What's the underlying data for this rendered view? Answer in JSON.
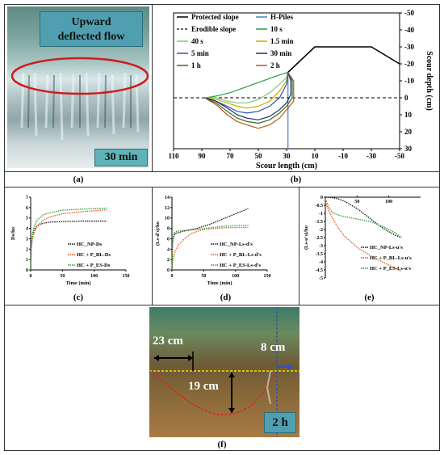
{
  "panels": {
    "a": {
      "caption": "(a)",
      "label": "Upward deflected flow",
      "label_line1": "Upward",
      "label_line2": "deflected flow",
      "time": "30 min"
    },
    "b": {
      "caption": "(b)"
    },
    "c": {
      "caption": "(c)"
    },
    "d": {
      "caption": "(d)"
    },
    "e": {
      "caption": "(e)"
    },
    "f": {
      "caption": "(f)",
      "dim1": "23 cm",
      "dim2": "19 cm",
      "dim3": "8 cm",
      "time": "2 h"
    }
  },
  "colors": {
    "protected": "#000000",
    "hpiles": "#4a7fc1",
    "s10s": "#2e9c3a",
    "s40s": "#7fc97f",
    "s1_5min": "#c8b400",
    "s5min": "#2c55a0",
    "s30min": "#1f2a70",
    "s1h": "#3a6b1e",
    "s2h": "#b2591e",
    "np": "#111111",
    "bl": "#e05a20",
    "es": "#2e9c3a"
  },
  "chart_data": [
    {
      "id": "b",
      "type": "line",
      "xlabel": "Scour length (cm)",
      "ylabel": "Scour depth (cm)",
      "xlim": [
        110,
        -50
      ],
      "ylim": [
        30,
        -50
      ],
      "xticks": [
        110,
        90,
        70,
        50,
        30,
        10,
        -10,
        -30,
        -50
      ],
      "yticks": [
        -50,
        -40,
        -30,
        -20,
        -10,
        0,
        10,
        20,
        30
      ],
      "legend": [
        "Protected slope",
        "H-Piles",
        "Erodible slope",
        "10 s",
        "40 s",
        "1.5 min",
        "5 min",
        "30 min",
        "1 h",
        "2 h"
      ],
      "series": [
        {
          "name": "Protected slope",
          "style": "solid",
          "x": [
            29,
            10,
            -30,
            -50
          ],
          "y": [
            -15,
            -30,
            -30,
            -20
          ]
        },
        {
          "name": "H-Piles",
          "style": "solid",
          "x": [
            29,
            29
          ],
          "y": [
            -15,
            30
          ]
        },
        {
          "name": "Erodible slope",
          "style": "dashed",
          "x": [
            110,
            -50
          ],
          "y": [
            0,
            0
          ]
        },
        {
          "name": "10 s",
          "x": [
            87,
            80,
            70,
            60,
            50,
            40,
            33,
            29
          ],
          "y": [
            0,
            -1,
            -3,
            -6,
            -9,
            -12,
            -14,
            -15
          ]
        },
        {
          "name": "40 s",
          "x": [
            87,
            80,
            72,
            65,
            58,
            50,
            42,
            35,
            30,
            29
          ],
          "y": [
            0,
            0,
            2,
            3,
            3,
            1,
            -3,
            -8,
            -12,
            -15
          ]
        },
        {
          "name": "1.5 min",
          "x": [
            87,
            80,
            72,
            65,
            58,
            50,
            42,
            35,
            30,
            29
          ],
          "y": [
            0,
            1,
            3,
            5,
            6,
            5,
            2,
            -4,
            -10,
            -15
          ]
        },
        {
          "name": "5 min",
          "x": [
            87,
            80,
            72,
            65,
            58,
            50,
            42,
            35,
            30,
            29
          ],
          "y": [
            0,
            2,
            5,
            8,
            9,
            8,
            5,
            0,
            -8,
            -15
          ]
        },
        {
          "name": "30 min",
          "x": [
            88,
            80,
            72,
            65,
            58,
            50,
            42,
            35,
            30,
            27,
            27,
            29
          ],
          "y": [
            0,
            2,
            6,
            10,
            12,
            13,
            11,
            7,
            3,
            -2,
            -10,
            -15
          ]
        },
        {
          "name": "1 h",
          "x": [
            88,
            80,
            72,
            65,
            58,
            50,
            42,
            35,
            30,
            26,
            26,
            29
          ],
          "y": [
            0,
            3,
            8,
            12,
            14,
            15,
            13,
            9,
            5,
            0,
            -10,
            -15
          ]
        },
        {
          "name": "2 h",
          "x": [
            88,
            80,
            72,
            65,
            58,
            50,
            42,
            35,
            30,
            25,
            25,
            29
          ],
          "y": [
            0,
            4,
            10,
            14,
            16,
            18,
            16,
            12,
            7,
            2,
            -10,
            -15
          ]
        }
      ]
    },
    {
      "id": "c",
      "type": "line",
      "xlabel": "Time (min)",
      "ylabel": "Ds/ho",
      "xlim": [
        0,
        150
      ],
      "ylim": [
        0,
        7
      ],
      "xticks": [
        0,
        50,
        100,
        150
      ],
      "yticks": [
        0,
        1,
        2,
        3,
        4,
        5,
        6,
        7
      ],
      "series": [
        {
          "name": "HC_NP-Ds",
          "x": [
            0,
            1,
            3,
            5,
            8,
            12,
            20,
            30,
            50,
            80,
            120
          ],
          "y": [
            0,
            2.5,
            3.4,
            3.8,
            4.1,
            4.3,
            4.5,
            4.6,
            4.65,
            4.7,
            4.7
          ]
        },
        {
          "name": "HC + P_BL-Ds",
          "x": [
            0,
            1,
            3,
            5,
            10,
            20,
            30,
            50,
            80,
            120
          ],
          "y": [
            0,
            2.0,
            3.0,
            3.5,
            4.2,
            4.8,
            5.1,
            5.4,
            5.6,
            5.8
          ]
        },
        {
          "name": "HC + P_ES-Ds",
          "x": [
            0,
            1,
            3,
            5,
            10,
            20,
            30,
            50,
            80,
            120
          ],
          "y": [
            0,
            2.5,
            3.5,
            4.1,
            4.8,
            5.3,
            5.5,
            5.75,
            5.85,
            5.95
          ]
        }
      ]
    },
    {
      "id": "d",
      "type": "line",
      "xlabel": "Time (min)",
      "ylabel": "(Ls-d's)/ho",
      "xlim": [
        0,
        150
      ],
      "ylim": [
        0,
        14
      ],
      "xticks": [
        0,
        50,
        100,
        150
      ],
      "yticks": [
        0,
        2,
        4,
        6,
        8,
        10,
        12,
        14
      ],
      "series": [
        {
          "name": "HC_NP-Ls-d's",
          "x": [
            0,
            1,
            3,
            5,
            10,
            20,
            40,
            60,
            80,
            100,
            120
          ],
          "y": [
            0,
            5,
            6.5,
            7.0,
            7.2,
            7.5,
            8.0,
            8.8,
            9.8,
            10.8,
            11.8
          ]
        },
        {
          "name": "HC + P_BL-Ls-d's",
          "x": [
            0,
            1,
            3,
            5,
            10,
            20,
            30,
            50,
            80,
            120
          ],
          "y": [
            0,
            1.5,
            2.8,
            3.5,
            4.8,
            6.0,
            7.0,
            7.8,
            8.1,
            8.2
          ]
        },
        {
          "name": "HC + P_ES-Ls-d's",
          "x": [
            0,
            1,
            3,
            5,
            10,
            20,
            40,
            60,
            80,
            120
          ],
          "y": [
            0,
            5.5,
            7.0,
            7.3,
            7.5,
            7.6,
            7.8,
            8.1,
            8.4,
            8.6
          ]
        }
      ]
    },
    {
      "id": "e",
      "type": "line",
      "xlabel": "",
      "ylabel": "(Ls-u's)/ho",
      "xlim": [
        0,
        150
      ],
      "ylim": [
        -5,
        0
      ],
      "xticks": [
        50,
        100
      ],
      "yticks": [
        0,
        -0.5,
        -1,
        -1.5,
        -2,
        -2.5,
        -3,
        -3.5,
        -4,
        -4.5,
        -5
      ],
      "series": [
        {
          "name": "HC_NP-Ls-u's",
          "x": [
            0,
            5,
            10,
            20,
            30,
            50,
            70,
            90,
            110,
            120
          ],
          "y": [
            0,
            0,
            -0.02,
            -0.1,
            -0.25,
            -0.7,
            -1.3,
            -1.9,
            -2.35,
            -2.5
          ]
        },
        {
          "name": "HC + P_BL-Ls-u's",
          "x": [
            0,
            2,
            5,
            10,
            20,
            30,
            50,
            70,
            90,
            110,
            120
          ],
          "y": [
            -0.3,
            -0.5,
            -0.8,
            -1.2,
            -1.9,
            -2.4,
            -3.1,
            -3.6,
            -4.0,
            -4.4,
            -4.6
          ]
        },
        {
          "name": "HC + P_ES-Ls-u's",
          "x": [
            0,
            2,
            5,
            10,
            20,
            30,
            50,
            70,
            90,
            110,
            120
          ],
          "y": [
            -0.1,
            -0.3,
            -0.6,
            -0.9,
            -1.1,
            -1.2,
            -1.35,
            -1.5,
            -1.8,
            -2.2,
            -2.5
          ]
        }
      ]
    }
  ]
}
